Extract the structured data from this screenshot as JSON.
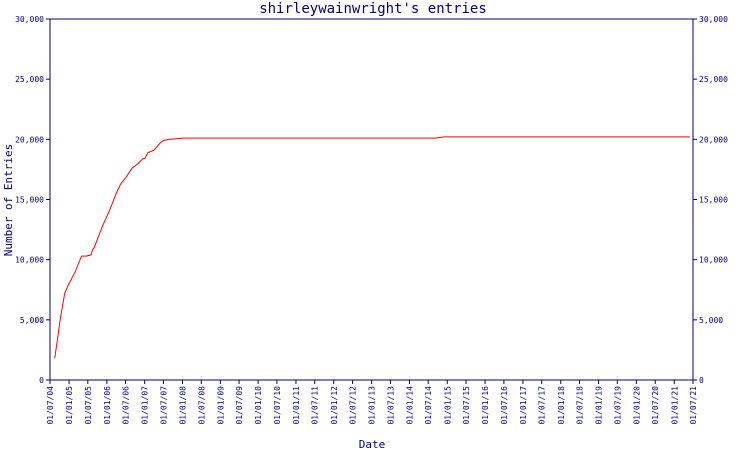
{
  "chart_data": {
    "type": "line",
    "title": "shirleywainwright's entries",
    "xlabel": "Date",
    "ylabel": "Number of Entries",
    "ylim": [
      0,
      30000
    ],
    "y_ticks": [
      "0",
      "5,000",
      "10,000",
      "15,000",
      "20,000",
      "25,000",
      "30,000"
    ],
    "x_ticks": [
      "01/07/04",
      "01/01/05",
      "01/07/05",
      "01/01/06",
      "01/07/06",
      "01/01/07",
      "01/07/07",
      "01/01/08",
      "01/07/08",
      "01/01/09",
      "01/07/09",
      "01/01/10",
      "01/07/10",
      "01/01/11",
      "01/07/11",
      "01/01/12",
      "01/07/12",
      "01/01/13",
      "01/07/13",
      "01/01/14",
      "01/07/14",
      "01/01/15",
      "01/07/15",
      "01/01/16",
      "01/07/16",
      "01/01/17",
      "01/07/17",
      "01/01/18",
      "01/07/18",
      "01/01/19",
      "01/07/19",
      "01/01/20",
      "01/07/20",
      "01/01/21",
      "01/07/21"
    ],
    "grid": false,
    "line_color": "#ff0000",
    "axis_color": "#000080",
    "series": [
      {
        "x": [
          "2004-08-15",
          "2004-09-05",
          "2004-10-10",
          "2004-11-20",
          "2004-12-20",
          "2005-03-01",
          "2005-05-01",
          "2005-06-15",
          "2005-08-01",
          "2005-08-15",
          "2005-09-01",
          "2005-10-15",
          "2005-12-01",
          "2006-02-01",
          "2006-04-01",
          "2006-05-15",
          "2006-07-01",
          "2006-09-01",
          "2006-11-01",
          "2006-12-15",
          "2007-01-01",
          "2007-02-01",
          "2007-04-01",
          "2007-06-01",
          "2007-07-01",
          "2007-09-01",
          "2007-11-01",
          "2008-01-01",
          "2008-04-01",
          "2008-07-01",
          "2014-09-01",
          "2014-12-01",
          "2021-06-01"
        ],
        "y": [
          1800,
          3000,
          5200,
          7200,
          7800,
          9000,
          10300,
          10300,
          10400,
          10800,
          11000,
          12000,
          13000,
          14200,
          15500,
          16300,
          16800,
          17600,
          18000,
          18400,
          18400,
          18900,
          19100,
          19700,
          19900,
          20000,
          20050,
          20100,
          20100,
          20100,
          20100,
          20200,
          20200
        ]
      }
    ]
  }
}
